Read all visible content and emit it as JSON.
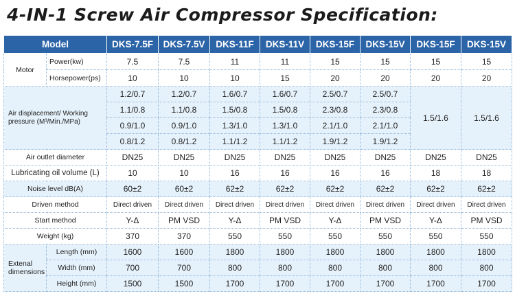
{
  "title": "4-IN-1 Screw Air Compressor Specification:",
  "header": {
    "model": "Model",
    "columns": [
      "DKS-7.5F",
      "DKS-7.5V",
      "DKS-11F",
      "DKS-11V",
      "DKS-15F",
      "DKS-15V",
      "DKS-15F",
      "DKS-15V"
    ]
  },
  "rows": {
    "motor": {
      "label": "Motor",
      "power_label": "Power(kw)",
      "power": [
        "7.5",
        "7.5",
        "11",
        "11",
        "15",
        "15",
        "15",
        "15"
      ],
      "hp_label": "Horsepower(ps)",
      "hp": [
        "10",
        "10",
        "10",
        "15",
        "20",
        "20",
        "20",
        "20"
      ]
    },
    "air": {
      "label": "Air displacement/ Working pressure (M³/Min./MPa)",
      "r1": [
        "1.2/0.7",
        "1.2/0.7",
        "1.6/0.7",
        "1.6/0.7",
        "2.5/0.7",
        "2.5/0.7"
      ],
      "r2": [
        "1.1/0.8",
        "1.1/0.8",
        "1.5/0.8",
        "1.5/0.8",
        "2.3/0.8",
        "2.3/0.8"
      ],
      "r3": [
        "0.9/1.0",
        "0.9/1.0",
        "1.3/1.0",
        "1.3/1.0",
        "2.1/1.0",
        "2.1/1.0"
      ],
      "r4": [
        "0.8/1.2",
        "0.8/1.2",
        "1.1/1.2",
        "1.1/1.2",
        "1.9/1.2",
        "1.9/1.2"
      ],
      "merged": [
        "1.5/1.6",
        "1.5/1.6"
      ]
    },
    "outlet": {
      "label": "Air outlet diameter",
      "values": [
        "DN25",
        "DN25",
        "DN25",
        "DN25",
        "DN25",
        "DN25",
        "DN25",
        "DN25"
      ]
    },
    "oil": {
      "label": "Lubricating oil volume (L)",
      "values": [
        "10",
        "10",
        "16",
        "16",
        "16",
        "16",
        "18",
        "18"
      ]
    },
    "noise": {
      "label": "Noise level dB(A)",
      "values": [
        "60±2",
        "60±2",
        "62±2",
        "62±2",
        "62±2",
        "62±2",
        "62±2",
        "62±2"
      ]
    },
    "driven": {
      "label": "Driven method",
      "values": [
        "Direct driven",
        "Direct driven",
        "Direct driven",
        "Direct driven",
        "Direct driven",
        "Direct driven",
        "Direct driven",
        "Direct driven"
      ]
    },
    "start": {
      "label": "Start method",
      "values": [
        "Y-Δ",
        "PM VSD",
        "Y-Δ",
        "PM VSD",
        "Y-Δ",
        "PM VSD",
        "Y-Δ",
        "PM VSD"
      ]
    },
    "weight": {
      "label": "Weight (kg)",
      "values": [
        "370",
        "370",
        "550",
        "550",
        "550",
        "550",
        "550",
        "550"
      ]
    },
    "dims": {
      "label": "Extenal dimensions",
      "length_label": "Length (mm)",
      "length": [
        "1600",
        "1600",
        "1800",
        "1800",
        "1800",
        "1800",
        "1800",
        "1800"
      ],
      "width_label": "Width (mm)",
      "width": [
        "700",
        "700",
        "800",
        "800",
        "800",
        "800",
        "800",
        "800"
      ],
      "height_label": "Height (mm)",
      "height": [
        "1500",
        "1500",
        "1700",
        "1700",
        "1700",
        "1700",
        "1700",
        "1700"
      ]
    }
  }
}
